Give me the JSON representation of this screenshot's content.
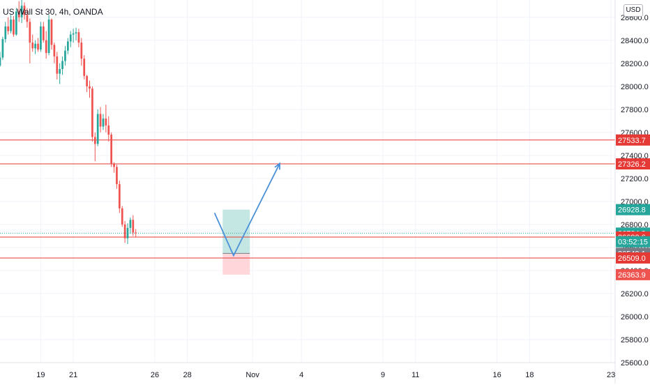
{
  "header": {
    "symbol_label": "US Wall St 30, 4h, OANDA"
  },
  "currency_button": {
    "label": "USD"
  },
  "colors": {
    "up": "#26a69a",
    "down": "#ef5350",
    "resistance": "#e53935",
    "arrow": "#4a90d9",
    "target_zone": "#b2dfdb",
    "stop_zone": "#ffcdd2",
    "grid": "#f0f3fa",
    "axis_text": "#131722"
  },
  "chart_data": {
    "type": "candlestick",
    "title": "",
    "xlabel": "",
    "ylabel": "",
    "timeframe": "4h",
    "xaxis": {
      "range": [
        "2020-10-16T12:00",
        "2020-11-23T06:00"
      ],
      "ticks": [
        {
          "label": "19",
          "date": "2020-10-19"
        },
        {
          "label": "21",
          "date": "2020-10-21"
        },
        {
          "label": "26",
          "date": "2020-10-26"
        },
        {
          "label": "28",
          "date": "2020-10-28"
        },
        {
          "label": "Nov",
          "date": "2020-11-01"
        },
        {
          "label": "4",
          "date": "2020-11-04"
        },
        {
          "label": "9",
          "date": "2020-11-09"
        },
        {
          "label": "11",
          "date": "2020-11-11"
        },
        {
          "label": "16",
          "date": "2020-11-16"
        },
        {
          "label": "18",
          "date": "2020-11-18"
        },
        {
          "label": "23",
          "date": "2020-11-23"
        }
      ]
    },
    "yaxis": {
      "range": [
        25600,
        28750
      ],
      "ticks": [
        25600,
        25800,
        26000,
        26200,
        26400,
        26600,
        26800,
        27000,
        27200,
        27400,
        27600,
        27800,
        28000,
        28200,
        28400,
        28600
      ],
      "ticks_text": [
        "25600.0",
        "25800.0",
        "26000.0",
        "26200.0",
        "26400.0",
        "26600.0",
        "26800.0",
        "27000.0",
        "27200.0",
        "27400.0",
        "27600.0",
        "27800.0",
        "28000.0",
        "28200.0",
        "28400.0",
        "28600.0"
      ]
    },
    "grid": true,
    "series": [
      {
        "start": "2020-10-16T12:00",
        "step_hours": 4,
        "candles": [
          [
            28180,
            28300,
            28170,
            28250
          ],
          [
            28250,
            28430,
            28230,
            28410
          ],
          [
            28410,
            28560,
            28380,
            28520
          ],
          [
            28520,
            28600,
            28450,
            28480
          ],
          [
            28480,
            28620,
            28460,
            28580
          ],
          [
            28580,
            28610,
            28430,
            28450
          ],
          [
            28450,
            28680,
            28440,
            28650
          ],
          [
            28650,
            28740,
            28560,
            28600
          ],
          [
            28600,
            28760,
            28550,
            28700
          ],
          [
            28700,
            28730,
            28580,
            28620
          ],
          [
            28620,
            28680,
            28510,
            28560
          ],
          [
            28560,
            28590,
            28200,
            28380
          ],
          [
            28380,
            28450,
            28300,
            28330
          ],
          [
            28330,
            28400,
            28280,
            28370
          ],
          [
            28370,
            28420,
            28300,
            28320
          ],
          [
            28320,
            28560,
            28300,
            28520
          ],
          [
            28520,
            28560,
            28380,
            28400
          ],
          [
            28400,
            28480,
            28240,
            28290
          ],
          [
            28290,
            28620,
            28270,
            28580
          ],
          [
            28580,
            28590,
            28320,
            28360
          ],
          [
            28360,
            28380,
            28200,
            28260
          ],
          [
            28260,
            28300,
            28060,
            28110
          ],
          [
            28110,
            28200,
            28020,
            28150
          ],
          [
            28150,
            28260,
            28100,
            28220
          ],
          [
            28220,
            28350,
            28180,
            28310
          ],
          [
            28310,
            28420,
            28280,
            28390
          ],
          [
            28390,
            28480,
            28340,
            28450
          ],
          [
            28450,
            28500,
            28380,
            28460
          ],
          [
            28460,
            28510,
            28400,
            28470
          ],
          [
            28470,
            28500,
            28340,
            28380
          ],
          [
            28380,
            28420,
            28180,
            28240
          ],
          [
            28240,
            28270,
            28060,
            28090
          ],
          [
            28090,
            28100,
            27950,
            28000
          ],
          [
            28000,
            28050,
            27900,
            27980
          ],
          [
            27980,
            28000,
            27520,
            27560
          ],
          [
            27560,
            27600,
            27350,
            27500
          ],
          [
            27500,
            27800,
            27480,
            27760
          ],
          [
            27760,
            27820,
            27600,
            27650
          ],
          [
            27650,
            27760,
            27620,
            27720
          ],
          [
            27720,
            27840,
            27600,
            27660
          ],
          [
            27660,
            27740,
            27520,
            27580
          ],
          [
            27580,
            27600,
            27300,
            27330
          ],
          [
            27330,
            27340,
            27250,
            27300
          ],
          [
            27300,
            27320,
            27110,
            27150
          ],
          [
            27150,
            27180,
            26900,
            26940
          ],
          [
            26940,
            26960,
            26780,
            26800
          ],
          [
            26800,
            26830,
            26640,
            26680
          ],
          [
            26680,
            26810,
            26630,
            26770
          ],
          [
            26770,
            26860,
            26720,
            26840
          ],
          [
            26840,
            26880,
            26700,
            26730
          ],
          [
            26730,
            26760,
            26690,
            26725
          ]
        ]
      }
    ],
    "horizontal_lines": [
      {
        "value": 27533.7,
        "label": "27533.7"
      },
      {
        "value": 27326.2,
        "label": "27326.2"
      },
      {
        "value": 26690.6,
        "label": "26690.6"
      },
      {
        "value": 26509.0,
        "label": "26509.0"
      }
    ],
    "price_tags": [
      {
        "value": 27533.7,
        "label": "27533.7",
        "color": "#e53935"
      },
      {
        "value": 27326.2,
        "label": "27326.2",
        "color": "#e53935"
      },
      {
        "value": 26928.8,
        "label": "26928.8",
        "color": "#26a69a"
      },
      {
        "value": 26724.8,
        "label": "26724.8",
        "color": "#26a69a"
      },
      {
        "value": 26690.6,
        "label": "26690.6",
        "color": "#e53935"
      },
      {
        "value": 26549.1,
        "label": "26549.1",
        "color": "#787b86"
      },
      {
        "value": 26509.0,
        "label": "26509.0",
        "color": "#e53935"
      },
      {
        "value": 26363.9,
        "label": "26363.9",
        "color": "#ef5350"
      }
    ],
    "countdown": {
      "value": 26650,
      "label": "03:52:15",
      "color": "#26a69a"
    },
    "current_price": 26724.8,
    "position": {
      "type": "long",
      "start": "2020-10-30T04:00",
      "end": "2020-10-31T20:00",
      "entry": 26549.1,
      "target": 26928.8,
      "stop": 26363.9
    },
    "projection_path": [
      {
        "date": "2020-10-29T16:00",
        "value": 26900
      },
      {
        "date": "2020-10-30T20:00",
        "value": 26530
      },
      {
        "date": "2020-11-02T16:00",
        "value": 27330
      }
    ]
  }
}
